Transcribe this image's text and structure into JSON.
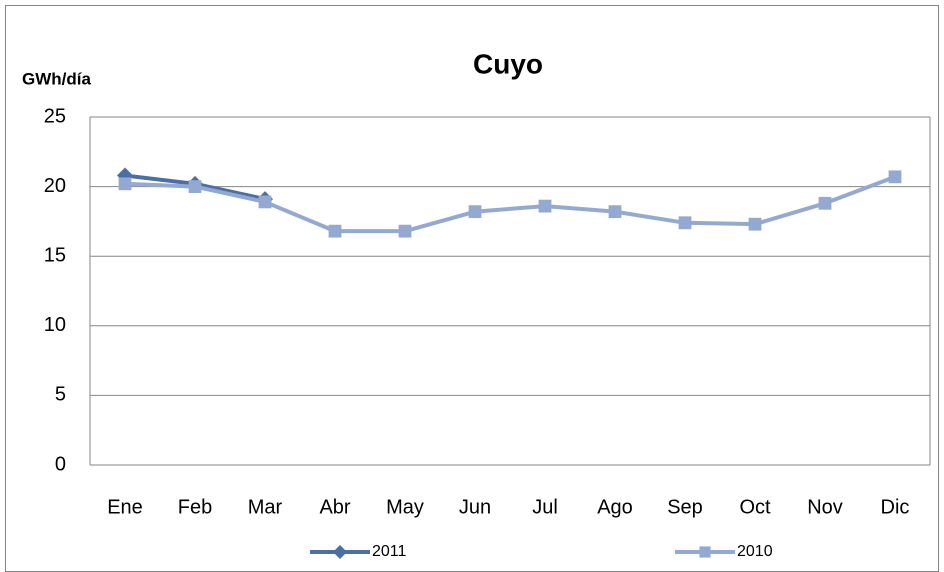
{
  "chart_data": {
    "type": "line",
    "title": "Cuyo",
    "y_label": "GWh/día",
    "categories": [
      "Ene",
      "Feb",
      "Mar",
      "Abr",
      "May",
      "Jun",
      "Jul",
      "Ago",
      "Sep",
      "Oct",
      "Nov",
      "Dic"
    ],
    "series": [
      {
        "name": "2011",
        "color": "#4a6fa5",
        "marker": "diamond",
        "values": [
          20.8,
          20.2,
          19.1,
          null,
          null,
          null,
          null,
          null,
          null,
          null,
          null,
          null
        ]
      },
      {
        "name": "2010",
        "color": "#94a9d2",
        "marker": "square",
        "values": [
          20.2,
          20.0,
          18.9,
          16.8,
          16.8,
          18.2,
          18.6,
          18.2,
          17.4,
          17.3,
          18.8,
          20.7
        ]
      }
    ],
    "ylim": [
      0,
      25
    ],
    "yticks": [
      0,
      5,
      10,
      15,
      20,
      25
    ],
    "grid": true,
    "legend": "bottom"
  }
}
